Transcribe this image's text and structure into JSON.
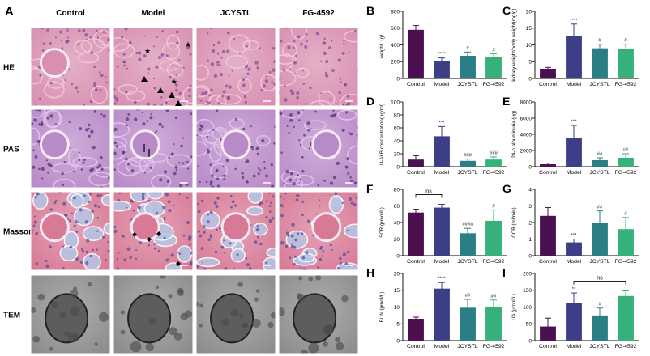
{
  "figure": {
    "panel_a": {
      "letter": "A",
      "columns": [
        "Control",
        "Model",
        "JCYSTL",
        "FG-4592"
      ],
      "rows": [
        "HE",
        "PAS",
        "Masson",
        "TEM"
      ],
      "colors": {
        "HE": "#d88fb0",
        "PAS": "#b98ac8",
        "Masson": "#d87a96",
        "TEM": "#8c8c8c",
        "marker": "#000000"
      }
    },
    "bar_colors": [
      "#4b1050",
      "#3c3f86",
      "#2a7f86",
      "#36b17a"
    ],
    "annotation_color": "#333333"
  },
  "chart_data": [
    {
      "panel": "B",
      "type": "bar",
      "categories": [
        "Control",
        "Model",
        "JCYSTL",
        "FG-4592"
      ],
      "values": [
        580,
        210,
        270,
        260
      ],
      "errors": [
        50,
        35,
        45,
        35
      ],
      "ylabel": "weight（g）",
      "ylim": [
        0,
        800
      ],
      "yticks": [
        0,
        200,
        400,
        600,
        800
      ],
      "marks": [
        "",
        "****",
        "#",
        "#"
      ]
    },
    {
      "panel": "C",
      "type": "bar",
      "categories": [
        "Control",
        "Model",
        "JCYSTL",
        "FG-4592"
      ],
      "values": [
        2.9,
        12.7,
        9.0,
        8.7
      ],
      "errors": [
        0.4,
        3.5,
        1.2,
        1.5
      ],
      "ylabel": "kidney weight/body weight(mg/g)",
      "ylim": [
        0,
        20
      ],
      "yticks": [
        0,
        5,
        10,
        15,
        20
      ],
      "marks": [
        "",
        "****",
        "#",
        "#"
      ]
    },
    {
      "panel": "D",
      "type": "bar",
      "categories": [
        "Control",
        "Model",
        "JCYSTL",
        "FG-4592"
      ],
      "values": [
        11,
        47,
        9,
        11
      ],
      "errors": [
        6,
        15,
        3,
        4
      ],
      "ylabel": "U-ALB concentration(μg/ml)",
      "ylim": [
        0,
        100
      ],
      "yticks": [
        0,
        20,
        40,
        60,
        80,
        100
      ],
      "marks": [
        "",
        "***",
        "###",
        "###"
      ]
    },
    {
      "panel": "E",
      "type": "bar",
      "categories": [
        "Control",
        "Model",
        "JCYSTL",
        "FG-4592"
      ],
      "values": [
        300,
        3500,
        800,
        1100
      ],
      "errors": [
        150,
        1600,
        300,
        500
      ],
      "ylabel": "24-h albuminuria (μg)",
      "ylim": [
        0,
        8000
      ],
      "yticks": [
        0,
        2000,
        4000,
        6000,
        8000
      ],
      "marks": [
        "",
        "***",
        "##",
        "##"
      ]
    },
    {
      "panel": "F",
      "type": "bar",
      "categories": [
        "Control",
        "Model",
        "JCYSTL",
        "FG-4592"
      ],
      "values": [
        52,
        58,
        27,
        42
      ],
      "errors": [
        4,
        4,
        6,
        13
      ],
      "ylabel": "SCR (μmol/L)",
      "ylim": [
        0,
        80
      ],
      "yticks": [
        0,
        20,
        40,
        60,
        80
      ],
      "marks": [
        "",
        "",
        "####",
        "#"
      ],
      "brackets": [
        {
          "from": 0,
          "to": 1,
          "label": "ns"
        }
      ]
    },
    {
      "panel": "G",
      "type": "bar",
      "categories": [
        "Control",
        "Model",
        "JCYSTL",
        "FG-4592"
      ],
      "values": [
        2.4,
        0.8,
        2.0,
        1.6
      ],
      "errors": [
        0.5,
        0.2,
        0.7,
        0.7
      ],
      "ylabel": "CCR (ml/min)",
      "ylim": [
        0,
        4
      ],
      "yticks": [
        0,
        1,
        2,
        3,
        4
      ],
      "marks": [
        "",
        "***",
        "##",
        "#"
      ]
    },
    {
      "panel": "H",
      "type": "bar",
      "categories": [
        "Control",
        "Model",
        "JCYSTL",
        "FG-4592"
      ],
      "values": [
        6.5,
        15.5,
        9.8,
        10.1
      ],
      "errors": [
        0.5,
        1.8,
        2.5,
        2.0
      ],
      "ylabel": "BUN (μmol/L)",
      "ylim": [
        0,
        20
      ],
      "yticks": [
        0,
        5,
        10,
        15,
        20
      ],
      "marks": [
        "",
        "****",
        "##",
        "##"
      ]
    },
    {
      "panel": "I",
      "type": "bar",
      "categories": [
        "Control",
        "Model",
        "JCYSTL",
        "FG-4592"
      ],
      "values": [
        42,
        112,
        75,
        133
      ],
      "errors": [
        25,
        30,
        22,
        15
      ],
      "ylabel": "UA (μmol/L)",
      "ylim": [
        0,
        200
      ],
      "yticks": [
        0,
        50,
        100,
        150,
        200
      ],
      "marks": [
        "",
        "**",
        "#",
        ""
      ],
      "brackets": [
        {
          "from": 1,
          "to": 3,
          "label": "ns"
        }
      ]
    }
  ]
}
